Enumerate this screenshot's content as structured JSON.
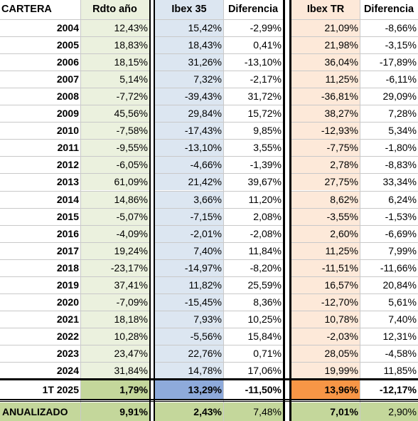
{
  "headers": {
    "cartera": "CARTERA",
    "rdto": "Rdto año",
    "ibex35": "Ibex 35",
    "dif1": "Diferencia",
    "ibextr": "Ibex TR",
    "dif2": "Diferencia"
  },
  "rows": [
    {
      "year": "2004",
      "rdto": "12,43%",
      "ibex35": "15,42%",
      "dif1": "-2,99%",
      "ibextr": "21,09%",
      "dif2": "-8,66%"
    },
    {
      "year": "2005",
      "rdto": "18,83%",
      "ibex35": "18,43%",
      "dif1": "0,41%",
      "ibextr": "21,98%",
      "dif2": "-3,15%"
    },
    {
      "year": "2006",
      "rdto": "18,15%",
      "ibex35": "31,26%",
      "dif1": "-13,10%",
      "ibextr": "36,04%",
      "dif2": "-17,89%"
    },
    {
      "year": "2007",
      "rdto": "5,14%",
      "ibex35": "7,32%",
      "dif1": "-2,17%",
      "ibextr": "11,25%",
      "dif2": "-6,11%"
    },
    {
      "year": "2008",
      "rdto": "-7,72%",
      "ibex35": "-39,43%",
      "dif1": "31,72%",
      "ibextr": "-36,81%",
      "dif2": "29,09%"
    },
    {
      "year": "2009",
      "rdto": "45,56%",
      "ibex35": "29,84%",
      "dif1": "15,72%",
      "ibextr": "38,27%",
      "dif2": "7,28%"
    },
    {
      "year": "2010",
      "rdto": "-7,58%",
      "ibex35": "-17,43%",
      "dif1": "9,85%",
      "ibextr": "-12,93%",
      "dif2": "5,34%"
    },
    {
      "year": "2011",
      "rdto": "-9,55%",
      "ibex35": "-13,10%",
      "dif1": "3,55%",
      "ibextr": "-7,75%",
      "dif2": "-1,80%"
    },
    {
      "year": "2012",
      "rdto": "-6,05%",
      "ibex35": "-4,66%",
      "dif1": "-1,39%",
      "ibextr": "2,78%",
      "dif2": "-8,83%"
    },
    {
      "year": "2013",
      "rdto": "61,09%",
      "ibex35": "21,42%",
      "dif1": "39,67%",
      "ibextr": "27,75%",
      "dif2": "33,34%"
    },
    {
      "year": "2014",
      "rdto": "14,86%",
      "ibex35": "3,66%",
      "dif1": "11,20%",
      "ibextr": "8,62%",
      "dif2": "6,24%"
    },
    {
      "year": "2015",
      "rdto": "-5,07%",
      "ibex35": "-7,15%",
      "dif1": "2,08%",
      "ibextr": "-3,55%",
      "dif2": "-1,53%"
    },
    {
      "year": "2016",
      "rdto": "-4,09%",
      "ibex35": "-2,01%",
      "dif1": "-2,08%",
      "ibextr": "2,60%",
      "dif2": "-6,69%"
    },
    {
      "year": "2017",
      "rdto": "19,24%",
      "ibex35": "7,40%",
      "dif1": "11,84%",
      "ibextr": "11,25%",
      "dif2": "7,99%"
    },
    {
      "year": "2018",
      "rdto": "-23,17%",
      "ibex35": "-14,97%",
      "dif1": "-8,20%",
      "ibextr": "-11,51%",
      "dif2": "-11,66%"
    },
    {
      "year": "2019",
      "rdto": "37,41%",
      "ibex35": "11,82%",
      "dif1": "25,59%",
      "ibextr": "16,57%",
      "dif2": "20,84%"
    },
    {
      "year": "2020",
      "rdto": "-7,09%",
      "ibex35": "-15,45%",
      "dif1": "8,36%",
      "ibextr": "-12,70%",
      "dif2": "5,61%"
    },
    {
      "year": "2021",
      "rdto": "18,18%",
      "ibex35": "7,93%",
      "dif1": "10,25%",
      "ibextr": "10,78%",
      "dif2": "7,40%"
    },
    {
      "year": "2022",
      "rdto": "10,28%",
      "ibex35": "-5,56%",
      "dif1": "15,84%",
      "ibextr": "-2,03%",
      "dif2": "12,31%"
    },
    {
      "year": "2023",
      "rdto": "23,47%",
      "ibex35": "22,76%",
      "dif1": "0,71%",
      "ibextr": "28,05%",
      "dif2": "-4,58%"
    },
    {
      "year": "2024",
      "rdto": "31,84%",
      "ibex35": "14,78%",
      "dif1": "17,06%",
      "ibextr": "19,99%",
      "dif2": "11,85%"
    }
  ],
  "q1": {
    "label": "1T 2025",
    "rdto": "1,79%",
    "ibex35": "13,29%",
    "dif1": "-11,50%",
    "ibextr": "13,96%",
    "dif2": "-12,17%"
  },
  "annual": {
    "label": "ANUALIZADO",
    "rdto": "9,91%",
    "ibex35": "2,43%",
    "dif1": "7,48%",
    "ibextr": "7,01%",
    "dif2": "2,90%"
  },
  "colors": {
    "green_light": "#ebf1de",
    "blue_light": "#dce6f1",
    "orange_light": "#fde9d9",
    "green_total": "#c4d79b",
    "blue_q1": "#8eaadb",
    "orange_q1": "#f79646"
  }
}
